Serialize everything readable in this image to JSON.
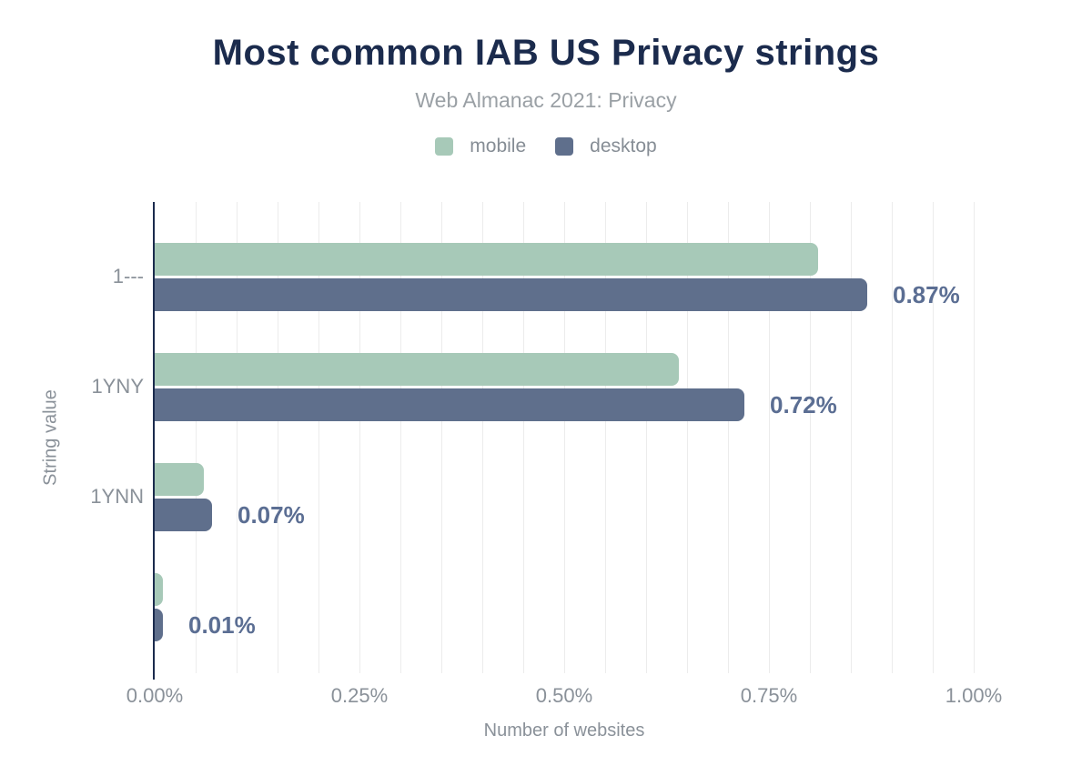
{
  "colors": {
    "background": "#ffffff",
    "title": "#1b2b4d",
    "subtitle": "#9aa0a5",
    "axis_line": "#1b2b4d",
    "gridline": "#ececec",
    "tick_text": "#8a9199",
    "legend_text": "#868d95",
    "data_label": "#5b6e93",
    "mobile": "#a7c9b8",
    "desktop": "#5f6f8c"
  },
  "chart_data": {
    "type": "bar",
    "orientation": "horizontal",
    "title": "Most common IAB US Privacy strings",
    "subtitle": "Web Almanac 2021: Privacy",
    "xlabel": "Number of websites",
    "ylabel": "String value",
    "legend_position": "top",
    "grid": "vertical-only",
    "categories": [
      "1---",
      "1YNY",
      "1YNN",
      ""
    ],
    "series": [
      {
        "name": "mobile",
        "color": "#a7c9b8",
        "values": [
          0.81,
          0.64,
          0.06,
          0.01
        ]
      },
      {
        "name": "desktop",
        "color": "#5f6f8c",
        "values": [
          0.87,
          0.72,
          0.07,
          0.01
        ]
      }
    ],
    "data_labels": {
      "labeled_series": "desktop",
      "values": [
        "0.87%",
        "0.72%",
        "0.07%",
        "0.01%"
      ]
    },
    "x_ticks": [
      {
        "value": 0.0,
        "label": "0.00%"
      },
      {
        "value": 0.25,
        "label": "0.25%"
      },
      {
        "value": 0.5,
        "label": "0.50%"
      },
      {
        "value": 0.75,
        "label": "0.75%"
      },
      {
        "value": 1.0,
        "label": "1.00%"
      }
    ],
    "xlim": [
      0,
      1.09
    ],
    "gridline_step": 0.05,
    "gridline_max": 1.0,
    "unit": "%"
  }
}
